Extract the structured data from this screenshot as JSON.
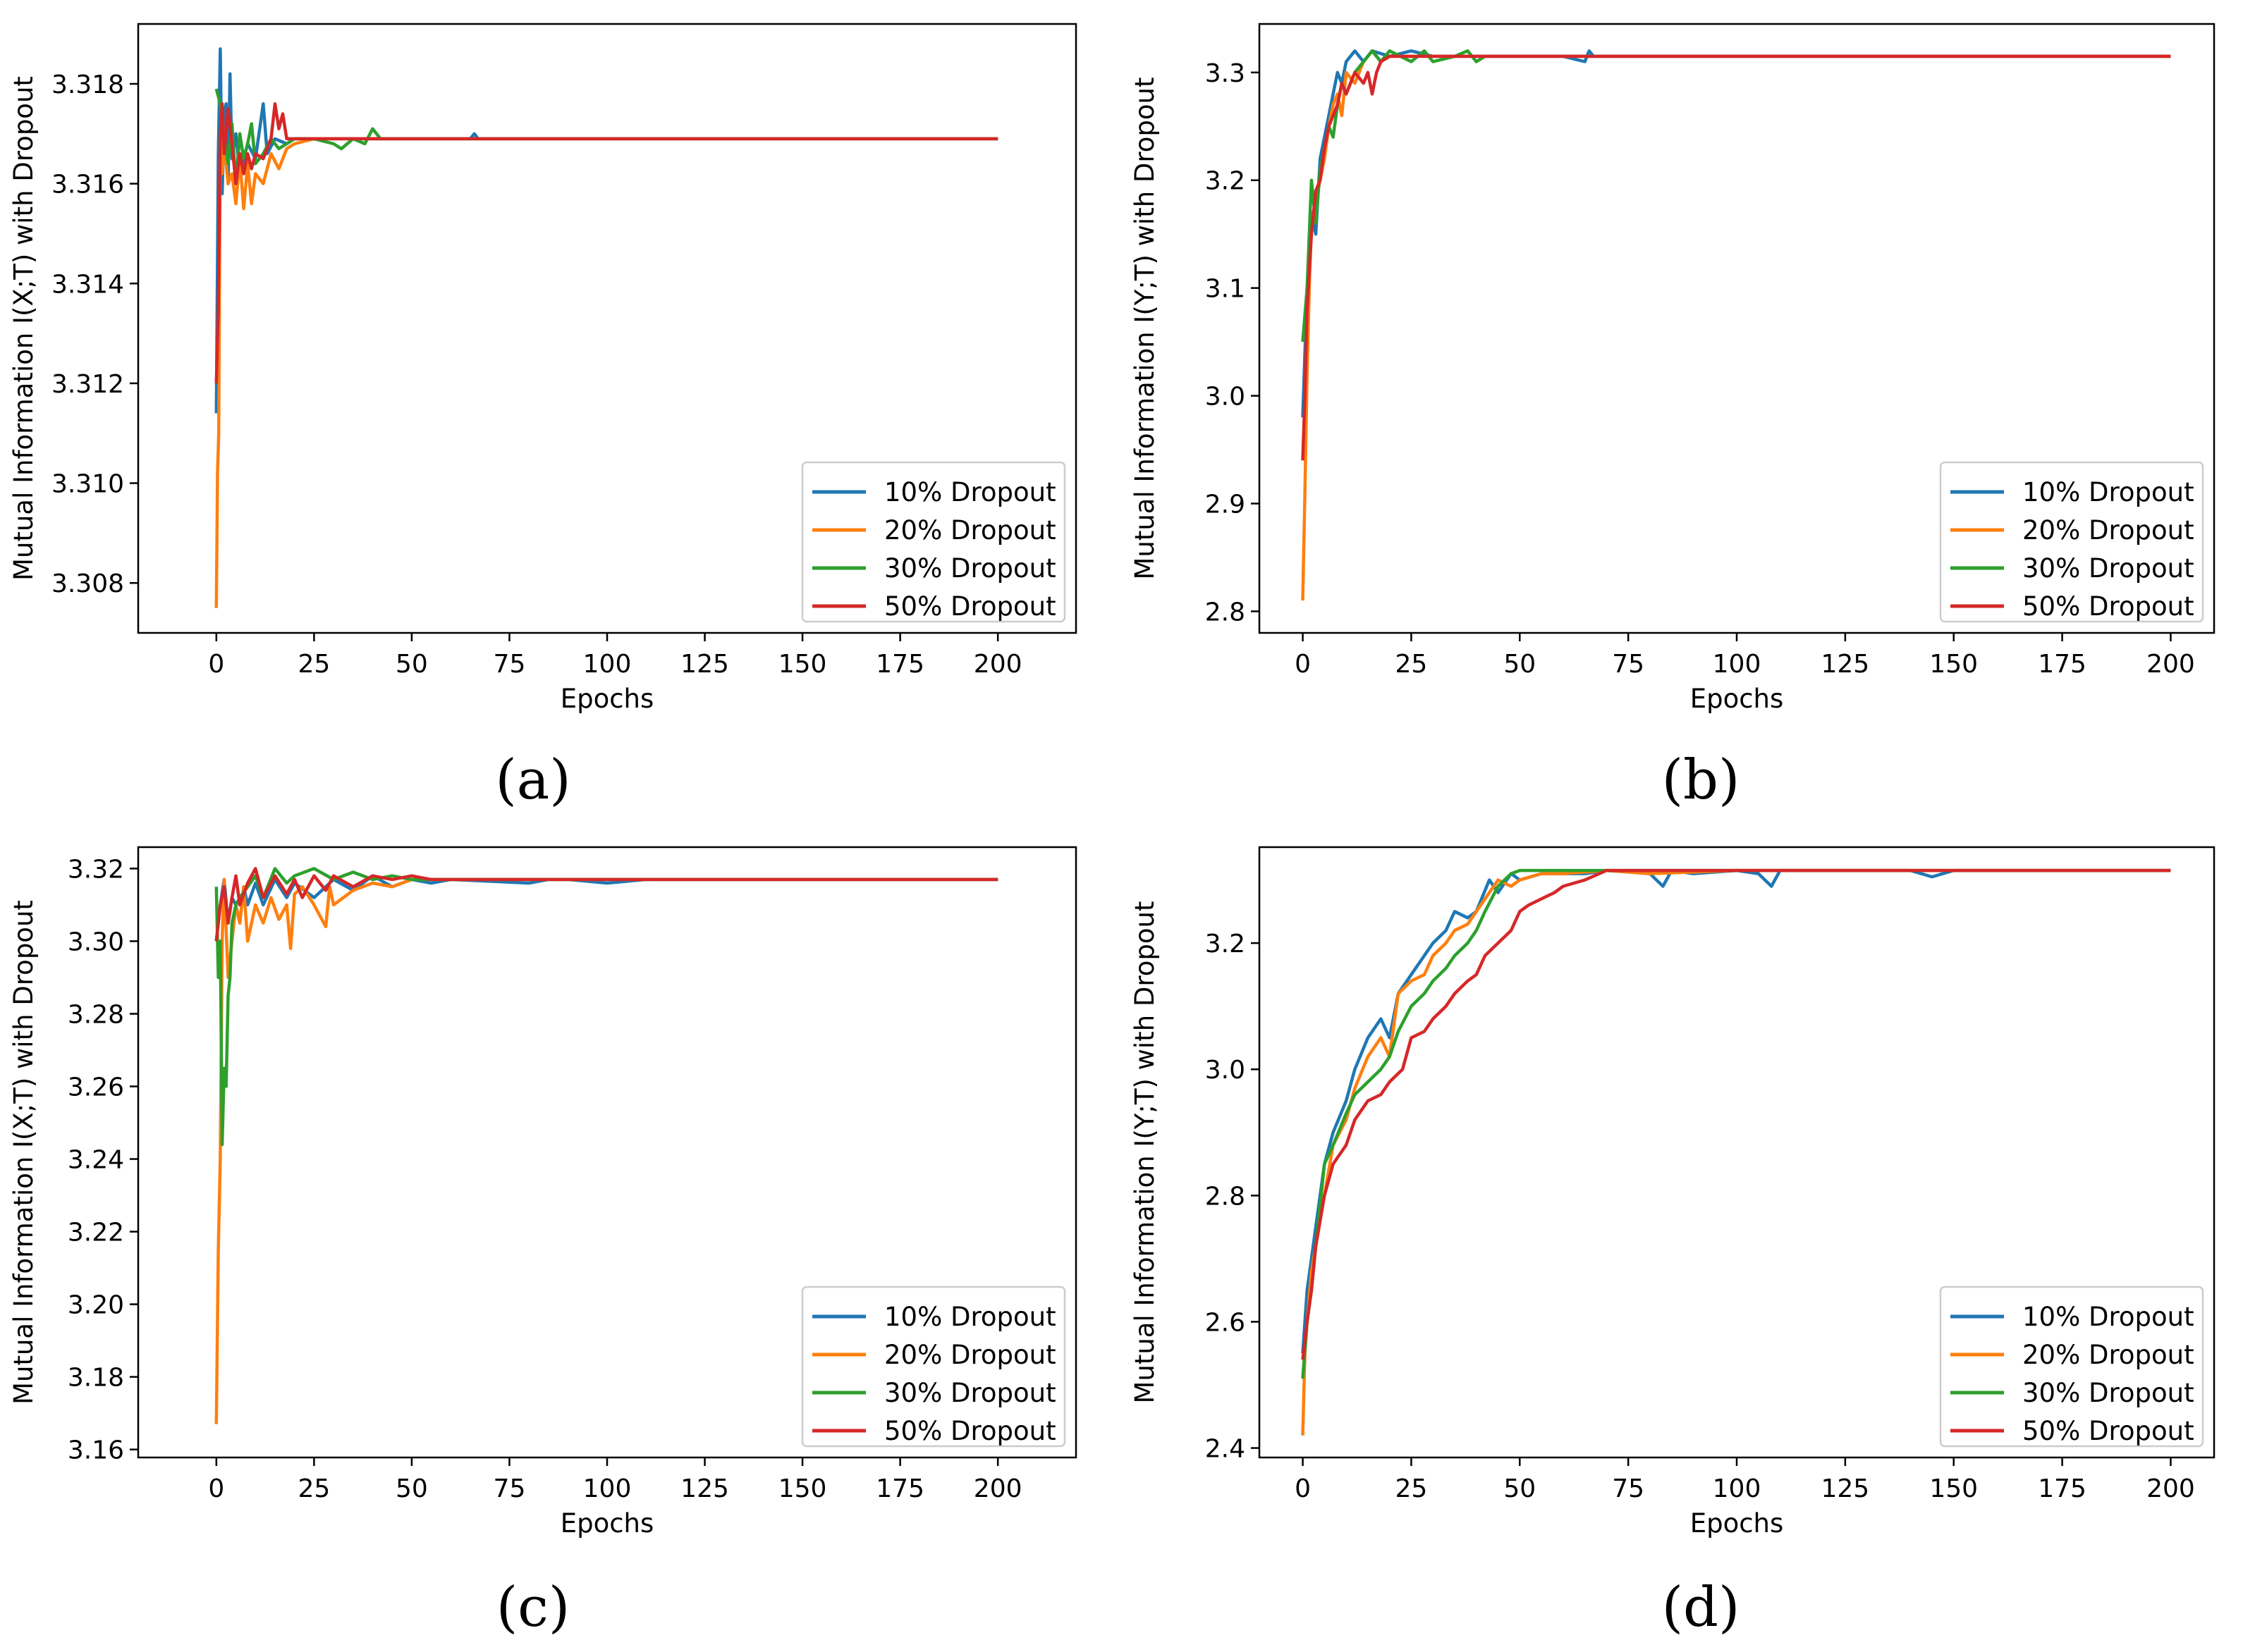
{
  "colors": {
    "10%": "#1f77b4",
    "20%": "#ff7f0e",
    "30%": "#2ca02c",
    "50%": "#d62728"
  },
  "legend": [
    "10% Dropout",
    "20% Dropout",
    "30% Dropout",
    "50% Dropout"
  ],
  "captions": {
    "a": "(a)",
    "b": "(b)",
    "c": "(c)",
    "d": "(d)"
  },
  "chart_data": [
    {
      "id": "a",
      "type": "line",
      "xlabel": "Epochs",
      "ylabel": "Mutual Information I(X;T) with Dropout",
      "xlim": [
        -20,
        220
      ],
      "ylim": [
        3.307,
        3.3192
      ],
      "xticks": [
        0,
        25,
        50,
        75,
        100,
        125,
        150,
        175,
        200
      ],
      "yticks": [
        3.308,
        3.31,
        3.312,
        3.314,
        3.316,
        3.318
      ],
      "ytick_decimals": 3,
      "legend_position": "lower right",
      "series": [
        {
          "name": "10% Dropout",
          "x": [
            0,
            0.5,
            1,
            1.5,
            2,
            2.5,
            3,
            3.5,
            4,
            5,
            6,
            8,
            10,
            12,
            13,
            15,
            18,
            20,
            25,
            30,
            40,
            60,
            65,
            66,
            67,
            70,
            200
          ],
          "y": [
            3.3114,
            3.3166,
            3.3187,
            3.3158,
            3.3174,
            3.3176,
            3.316,
            3.3182,
            3.3165,
            3.317,
            3.3162,
            3.3168,
            3.3165,
            3.3176,
            3.3166,
            3.3169,
            3.3168,
            3.3169,
            3.3169,
            3.3169,
            3.3169,
            3.3169,
            3.3169,
            3.317,
            3.3169,
            3.3169,
            3.3169
          ]
        },
        {
          "name": "20% Dropout",
          "x": [
            0,
            0.3,
            0.6,
            1,
            1.5,
            2,
            3,
            4,
            5,
            6,
            7,
            8,
            9,
            10,
            12,
            14,
            16,
            18,
            20,
            25,
            30,
            200
          ],
          "y": [
            3.3075,
            3.3102,
            3.311,
            3.317,
            3.3162,
            3.3168,
            3.316,
            3.3162,
            3.3156,
            3.3165,
            3.3155,
            3.3164,
            3.3156,
            3.3162,
            3.316,
            3.3166,
            3.3163,
            3.3167,
            3.3168,
            3.3169,
            3.3169,
            3.3169
          ]
        },
        {
          "name": "30% Dropout",
          "x": [
            0,
            1,
            2,
            3,
            4,
            5,
            6,
            7,
            8,
            9,
            10,
            12,
            14,
            16,
            20,
            25,
            30,
            32,
            35,
            38,
            40,
            42,
            45,
            200
          ],
          "y": [
            3.3179,
            3.3176,
            3.317,
            3.3164,
            3.3172,
            3.316,
            3.317,
            3.3165,
            3.3168,
            3.3172,
            3.3164,
            3.3166,
            3.3169,
            3.3167,
            3.3169,
            3.3169,
            3.3168,
            3.3167,
            3.3169,
            3.3168,
            3.3171,
            3.3169,
            3.3169,
            3.3169
          ]
        },
        {
          "name": "50% Dropout",
          "x": [
            0,
            0.5,
            1,
            1.5,
            2,
            3,
            4,
            5,
            6,
            7,
            8,
            9,
            10,
            12,
            14,
            15,
            16,
            17,
            18,
            20,
            25,
            200
          ],
          "y": [
            3.312,
            3.3135,
            3.317,
            3.3176,
            3.3166,
            3.3175,
            3.3168,
            3.316,
            3.3166,
            3.3162,
            3.3166,
            3.3163,
            3.3166,
            3.3165,
            3.3169,
            3.3176,
            3.3171,
            3.3174,
            3.3169,
            3.3169,
            3.3169,
            3.3169
          ]
        }
      ]
    },
    {
      "id": "b",
      "type": "line",
      "xlabel": "Epochs",
      "ylabel": "Mutual Information I(Y;T) with Dropout",
      "xlim": [
        -10,
        210
      ],
      "ylim": [
        2.78,
        3.345
      ],
      "xticks": [
        0,
        25,
        50,
        75,
        100,
        125,
        150,
        175,
        200
      ],
      "yticks": [
        2.8,
        2.9,
        3.0,
        3.1,
        3.2,
        3.3
      ],
      "ytick_decimals": 1,
      "legend_position": "lower right",
      "series": [
        {
          "name": "10% Dropout",
          "x": [
            0,
            1,
            2,
            3,
            4,
            5,
            6,
            7,
            8,
            9,
            10,
            12,
            14,
            16,
            20,
            25,
            30,
            40,
            60,
            65,
            66,
            67,
            70,
            200
          ],
          "y": [
            2.98,
            3.1,
            3.17,
            3.15,
            3.22,
            3.24,
            3.26,
            3.28,
            3.3,
            3.29,
            3.31,
            3.32,
            3.31,
            3.32,
            3.315,
            3.32,
            3.315,
            3.315,
            3.315,
            3.31,
            3.32,
            3.315,
            3.315,
            3.315
          ]
        },
        {
          "name": "20% Dropout",
          "x": [
            0,
            0.5,
            1,
            1.5,
            2,
            3,
            4,
            5,
            6,
            7,
            8,
            9,
            10,
            12,
            14,
            16,
            18,
            20,
            25,
            30,
            200
          ],
          "y": [
            2.81,
            2.91,
            3.02,
            3.1,
            3.16,
            3.18,
            3.2,
            3.22,
            3.25,
            3.27,
            3.28,
            3.26,
            3.3,
            3.29,
            3.31,
            3.32,
            3.31,
            3.315,
            3.315,
            3.315,
            3.315
          ]
        },
        {
          "name": "30% Dropout",
          "x": [
            0,
            1,
            2,
            3,
            4,
            5,
            6,
            7,
            8,
            9,
            10,
            12,
            14,
            16,
            18,
            20,
            25,
            28,
            30,
            35,
            38,
            40,
            42,
            45,
            200
          ],
          "y": [
            3.05,
            3.1,
            3.2,
            3.16,
            3.21,
            3.23,
            3.25,
            3.24,
            3.27,
            3.29,
            3.28,
            3.3,
            3.31,
            3.32,
            3.31,
            3.32,
            3.31,
            3.32,
            3.31,
            3.315,
            3.32,
            3.31,
            3.315,
            3.315,
            3.315
          ]
        },
        {
          "name": "50% Dropout",
          "x": [
            0,
            0.5,
            1,
            2,
            3,
            4,
            5,
            6,
            7,
            8,
            9,
            10,
            12,
            14,
            15,
            16,
            17,
            18,
            20,
            25,
            200
          ],
          "y": [
            2.94,
            3.0,
            3.08,
            3.15,
            3.19,
            3.2,
            3.23,
            3.25,
            3.26,
            3.27,
            3.29,
            3.28,
            3.3,
            3.29,
            3.3,
            3.28,
            3.3,
            3.31,
            3.315,
            3.315,
            3.315
          ]
        }
      ]
    },
    {
      "id": "c",
      "type": "line",
      "xlabel": "Epochs",
      "ylabel": "Mutual Information I(X;T) with Dropout",
      "xlim": [
        -20,
        220
      ],
      "ylim": [
        3.1578,
        3.3259
      ],
      "xticks": [
        0,
        25,
        50,
        75,
        100,
        125,
        150,
        175,
        200
      ],
      "yticks": [
        3.16,
        3.18,
        3.2,
        3.22,
        3.24,
        3.26,
        3.28,
        3.3,
        3.32
      ],
      "ytick_decimals": 2,
      "legend_position": "lower right",
      "series": [
        {
          "name": "10% Dropout",
          "x": [
            0,
            1,
            2,
            3,
            4,
            5,
            6,
            7,
            8,
            10,
            12,
            15,
            18,
            20,
            25,
            30,
            35,
            40,
            45,
            50,
            55,
            60,
            80,
            85,
            90,
            100,
            110,
            145,
            200
          ],
          "y": [
            3.3,
            3.31,
            3.317,
            3.305,
            3.312,
            3.31,
            3.305,
            3.315,
            3.31,
            3.316,
            3.31,
            3.317,
            3.312,
            3.316,
            3.312,
            3.317,
            3.314,
            3.318,
            3.315,
            3.317,
            3.316,
            3.317,
            3.316,
            3.317,
            3.317,
            3.316,
            3.317,
            3.317,
            3.317
          ]
        },
        {
          "name": "20% Dropout",
          "x": [
            0,
            0.5,
            1,
            1.5,
            2,
            3,
            4,
            5,
            6,
            7,
            8,
            10,
            12,
            14,
            16,
            18,
            19,
            20,
            22,
            25,
            28,
            29,
            30,
            35,
            40,
            45,
            50,
            60,
            200
          ],
          "y": [
            3.167,
            3.215,
            3.24,
            3.3,
            3.317,
            3.29,
            3.3,
            3.31,
            3.305,
            3.315,
            3.3,
            3.31,
            3.305,
            3.312,
            3.306,
            3.31,
            3.298,
            3.313,
            3.315,
            3.31,
            3.304,
            3.315,
            3.31,
            3.314,
            3.316,
            3.315,
            3.317,
            3.317,
            3.317
          ]
        },
        {
          "name": "30% Dropout",
          "x": [
            0,
            0.5,
            1,
            1.5,
            2,
            2.5,
            3,
            3.5,
            4,
            5,
            6,
            8,
            10,
            12,
            15,
            18,
            20,
            25,
            30,
            35,
            40,
            45,
            50,
            60,
            200
          ],
          "y": [
            3.315,
            3.29,
            3.3,
            3.244,
            3.265,
            3.26,
            3.285,
            3.29,
            3.305,
            3.31,
            3.312,
            3.315,
            3.318,
            3.312,
            3.32,
            3.316,
            3.318,
            3.32,
            3.317,
            3.319,
            3.317,
            3.318,
            3.317,
            3.317,
            3.317
          ]
        },
        {
          "name": "50% Dropout",
          "x": [
            0,
            1,
            2,
            3,
            4,
            5,
            6,
            8,
            10,
            12,
            15,
            18,
            20,
            22,
            25,
            28,
            30,
            35,
            40,
            45,
            50,
            55,
            60,
            200
          ],
          "y": [
            3.3,
            3.31,
            3.315,
            3.305,
            3.312,
            3.318,
            3.31,
            3.316,
            3.32,
            3.312,
            3.318,
            3.313,
            3.317,
            3.312,
            3.318,
            3.314,
            3.318,
            3.315,
            3.318,
            3.317,
            3.318,
            3.317,
            3.317,
            3.317
          ]
        }
      ]
    },
    {
      "id": "d",
      "type": "line",
      "xlabel": "Epochs",
      "ylabel": "Mutual Information I(Y;T) with Dropout",
      "xlim": [
        -10,
        210
      ],
      "ylim": [
        2.385,
        3.352
      ],
      "xticks": [
        0,
        25,
        50,
        75,
        100,
        125,
        150,
        175,
        200
      ],
      "yticks": [
        2.4,
        2.6,
        2.8,
        3.0,
        3.2
      ],
      "ytick_decimals": 1,
      "legend_position": "lower right",
      "series": [
        {
          "name": "10% Dropout",
          "x": [
            0,
            1,
            2,
            3,
            5,
            7,
            10,
            12,
            15,
            18,
            20,
            22,
            25,
            28,
            30,
            33,
            35,
            38,
            40,
            43,
            45,
            48,
            50,
            55,
            60,
            65,
            70,
            80,
            83,
            85,
            90,
            100,
            105,
            108,
            110,
            140,
            145,
            150,
            200
          ],
          "y": [
            2.55,
            2.65,
            2.7,
            2.75,
            2.85,
            2.9,
            2.95,
            3.0,
            3.05,
            3.08,
            3.05,
            3.12,
            3.15,
            3.18,
            3.2,
            3.22,
            3.25,
            3.24,
            3.25,
            3.3,
            3.28,
            3.31,
            3.3,
            3.31,
            3.31,
            3.31,
            3.315,
            3.31,
            3.29,
            3.315,
            3.31,
            3.315,
            3.31,
            3.29,
            3.315,
            3.315,
            3.305,
            3.315,
            3.315
          ]
        },
        {
          "name": "20% Dropout",
          "x": [
            0,
            0.5,
            1,
            2,
            3,
            5,
            7,
            10,
            12,
            15,
            18,
            20,
            22,
            25,
            28,
            30,
            33,
            35,
            38,
            40,
            43,
            45,
            48,
            50,
            55,
            60,
            70,
            80,
            100,
            200
          ],
          "y": [
            2.42,
            2.55,
            2.6,
            2.68,
            2.72,
            2.8,
            2.88,
            2.92,
            2.97,
            3.02,
            3.05,
            3.02,
            3.12,
            3.14,
            3.15,
            3.18,
            3.2,
            3.22,
            3.23,
            3.25,
            3.28,
            3.3,
            3.29,
            3.3,
            3.31,
            3.31,
            3.315,
            3.31,
            3.315,
            3.315
          ]
        },
        {
          "name": "30% Dropout",
          "x": [
            0,
            1,
            2,
            3,
            5,
            7,
            10,
            12,
            15,
            18,
            20,
            22,
            25,
            28,
            30,
            33,
            35,
            38,
            40,
            42,
            45,
            48,
            50,
            55,
            60,
            200
          ],
          "y": [
            2.51,
            2.6,
            2.65,
            2.72,
            2.85,
            2.88,
            2.93,
            2.96,
            2.98,
            3.0,
            3.02,
            3.06,
            3.1,
            3.12,
            3.14,
            3.16,
            3.18,
            3.2,
            3.22,
            3.25,
            3.29,
            3.31,
            3.315,
            3.315,
            3.315,
            3.315
          ]
        },
        {
          "name": "50% Dropout",
          "x": [
            0,
            1,
            2,
            3,
            5,
            7,
            10,
            12,
            15,
            18,
            20,
            23,
            25,
            28,
            30,
            33,
            35,
            38,
            40,
            42,
            45,
            48,
            50,
            52,
            55,
            58,
            60,
            65,
            70,
            200
          ],
          "y": [
            2.54,
            2.6,
            2.65,
            2.72,
            2.8,
            2.85,
            2.88,
            2.92,
            2.95,
            2.96,
            2.98,
            3.0,
            3.05,
            3.06,
            3.08,
            3.1,
            3.12,
            3.14,
            3.15,
            3.18,
            3.2,
            3.22,
            3.25,
            3.26,
            3.27,
            3.28,
            3.29,
            3.3,
            3.315,
            3.315
          ]
        }
      ]
    }
  ]
}
